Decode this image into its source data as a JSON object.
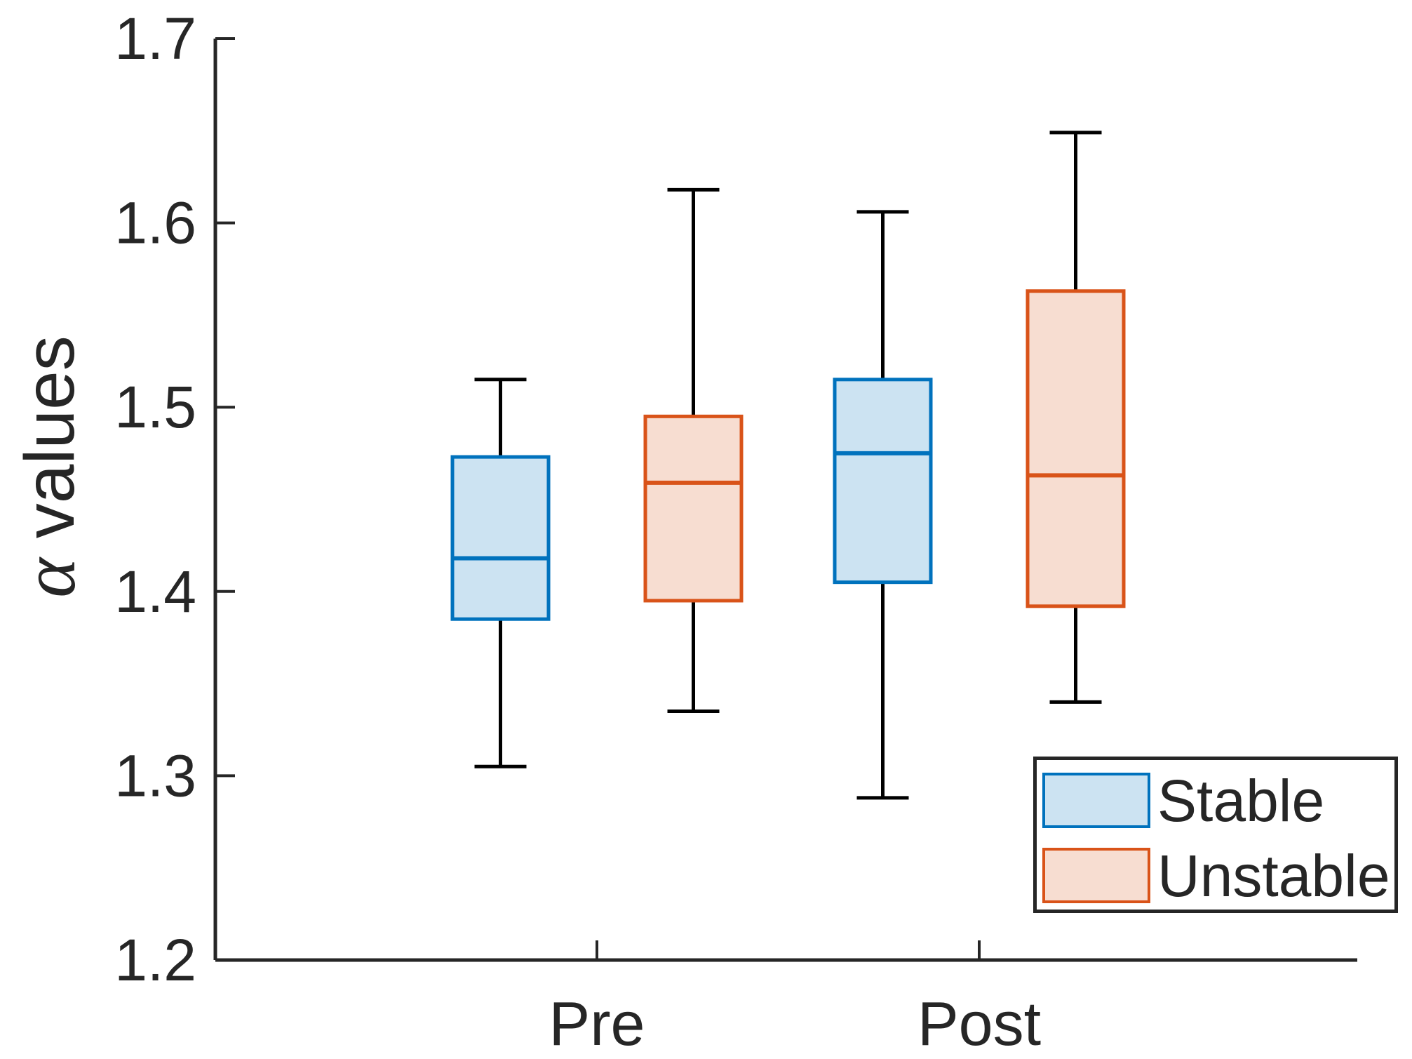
{
  "figure": {
    "ylabel": {
      "symbol": "α",
      "text": " values"
    },
    "colors": {
      "axis": "#262626",
      "text": "#262626",
      "whisker": "#000000",
      "stable_edge": "#0072BD",
      "stable_fill": "#CCE3F2",
      "unstable_edge": "#D95319",
      "unstable_fill": "#F7DDD1"
    }
  },
  "legend": {
    "position": "bottom-right",
    "items": [
      {
        "label": "Stable"
      },
      {
        "label": "Unstable"
      }
    ]
  },
  "chart_data": {
    "type": "boxplot",
    "title": "",
    "xlabel": "",
    "ylabel": "α values",
    "categories": [
      "Pre",
      "Post"
    ],
    "y_ticks": [
      "1.2",
      "1.3",
      "1.4",
      "1.5",
      "1.6",
      "1.7"
    ],
    "ylim": [
      1.2,
      1.7
    ],
    "grid": false,
    "legend_position": "bottom-right",
    "series": [
      {
        "name": "Stable",
        "edge_color": "#0072BD",
        "fill_color": "#CCE3F2",
        "boxes": [
          {
            "category": "Pre",
            "whisker_low": 1.305,
            "q1": 1.385,
            "median": 1.418,
            "q3": 1.473,
            "whisker_high": 1.515
          },
          {
            "category": "Post",
            "whisker_low": 1.288,
            "q1": 1.405,
            "median": 1.475,
            "q3": 1.515,
            "whisker_high": 1.606
          }
        ]
      },
      {
        "name": "Unstable",
        "edge_color": "#D95319",
        "fill_color": "#F7DDD1",
        "boxes": [
          {
            "category": "Pre",
            "whisker_low": 1.335,
            "q1": 1.395,
            "median": 1.459,
            "q3": 1.495,
            "whisker_high": 1.618
          },
          {
            "category": "Post",
            "whisker_low": 1.34,
            "q1": 1.392,
            "median": 1.463,
            "q3": 1.563,
            "whisker_high": 1.649
          }
        ]
      }
    ]
  }
}
